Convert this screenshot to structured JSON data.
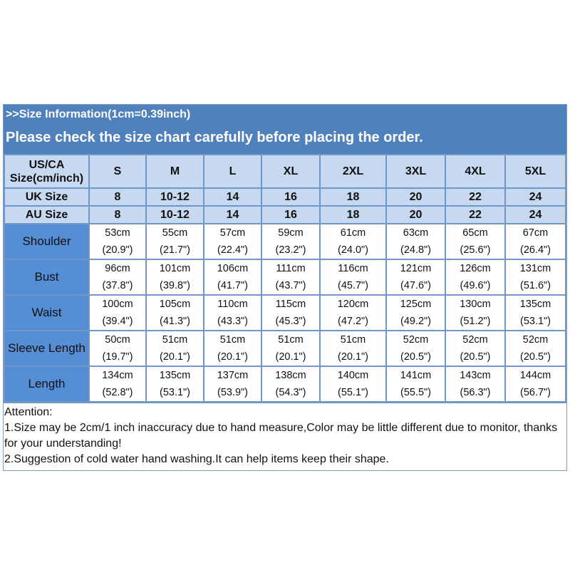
{
  "banner": {
    "title": ">>Size Information(1cm=0.39inch)",
    "subtitle": "Please check the size chart carefully before placing the order."
  },
  "colors": {
    "banner": "#4f81bd",
    "header_rows": "#c6d9f0",
    "label_column": "#558ed5"
  },
  "table": {
    "header_label": "US/CA Size(cm/inch)",
    "sizes": [
      "S",
      "M",
      "L",
      "XL",
      "2XL",
      "3XL",
      "4XL",
      "5XL"
    ],
    "size_rows": [
      {
        "label": "UK Size",
        "values": [
          "8",
          "10-12",
          "14",
          "16",
          "18",
          "20",
          "22",
          "24"
        ]
      },
      {
        "label": "AU Size",
        "values": [
          "8",
          "10-12",
          "14",
          "16",
          "18",
          "20",
          "22",
          "24"
        ]
      }
    ],
    "rows": [
      {
        "label": "Shoulder",
        "cm": [
          "53cm",
          "55cm",
          "57cm",
          "59cm",
          "61cm",
          "63cm",
          "65cm",
          "67cm"
        ],
        "inch": [
          "(20.9\")",
          "(21.7\")",
          "(22.4\")",
          "(23.2\")",
          "(24.0\")",
          "(24.8\")",
          "(25.6\")",
          "(26.4\")"
        ]
      },
      {
        "label": "Bust",
        "cm": [
          "96cm",
          "101cm",
          "106cm",
          "111cm",
          "116cm",
          "121cm",
          "126cm",
          "131cm"
        ],
        "inch": [
          "(37.8\")",
          "(39.8\")",
          "(41.7\")",
          "(43.7\")",
          "(45.7\")",
          "(47.6\")",
          "(49.6\")",
          "(51.6\")"
        ]
      },
      {
        "label": "Waist",
        "cm": [
          "100cm",
          "105cm",
          "110cm",
          "115cm",
          "120cm",
          "125cm",
          "130cm",
          "135cm"
        ],
        "inch": [
          "(39.4\")",
          "(41.3\")",
          "(43.3\")",
          "(45.3\")",
          "(47.2\")",
          "(49.2\")",
          "(51.2\")",
          "(53.1\")"
        ]
      },
      {
        "label": "Sleeve Length",
        "cm": [
          "50cm",
          "51cm",
          "51cm",
          "51cm",
          "51cm",
          "52cm",
          "52cm",
          "52cm"
        ],
        "inch": [
          "(19.7\")",
          "(20.1\")",
          "(20.1\")",
          "(20.1\")",
          "(20.1\")",
          "(20.5\")",
          "(20.5\")",
          "(20.5\")"
        ]
      },
      {
        "label": "Length",
        "cm": [
          "134cm",
          "135cm",
          "137cm",
          "138cm",
          "140cm",
          "141cm",
          "143cm",
          "144cm"
        ],
        "inch": [
          "(52.8\")",
          "(53.1\")",
          "(53.9\")",
          "(54.3\")",
          "(55.1\")",
          "(55.5\")",
          "(56.3\")",
          "(56.7\")"
        ]
      }
    ]
  },
  "attention": {
    "title": "Attention:",
    "notes": [
      "1.Size may be 2cm/1 inch inaccuracy due to hand measure,Color may be little different due to monitor, thanks for your understanding!",
      "2.Suggestion of cold water hand washing.It can help items keep their shape."
    ]
  }
}
